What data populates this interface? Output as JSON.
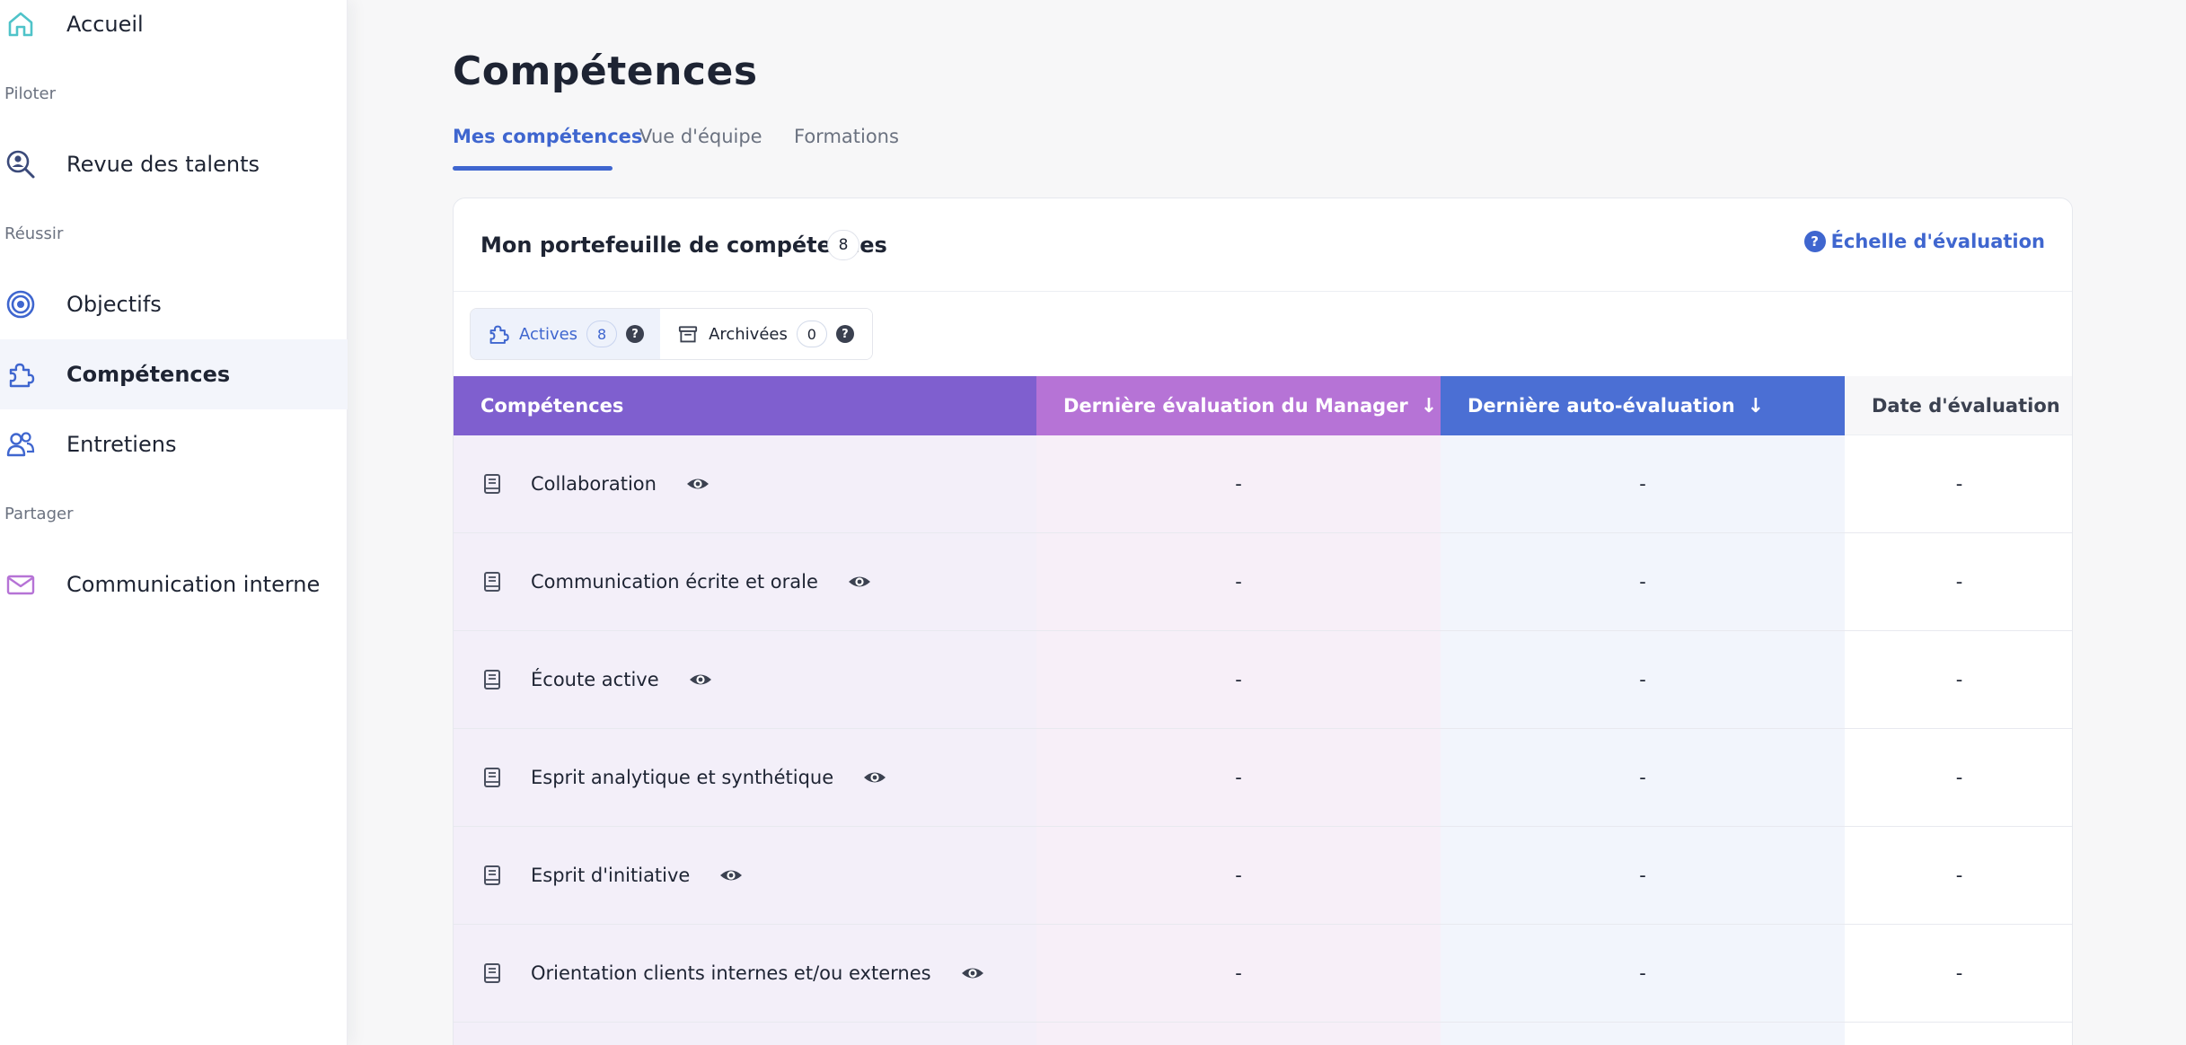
{
  "sidebar": {
    "items": [
      {
        "label": "Accueil",
        "icon": "home-icon",
        "color": "#4fc3c9"
      },
      {
        "label": "Revue des talents",
        "icon": "search-person-icon",
        "color": "#3b4a7a"
      },
      {
        "label": "Objectifs",
        "icon": "target-icon",
        "color": "#3f66cf"
      },
      {
        "label": "Compétences",
        "icon": "puzzle-icon",
        "color": "#3f66cf",
        "active": true
      },
      {
        "label": "Entretiens",
        "icon": "people-icon",
        "color": "#3f66cf"
      },
      {
        "label": "Communication interne",
        "icon": "mail-icon",
        "color": "#b673d6"
      }
    ],
    "sections": [
      "Piloter",
      "Réussir",
      "Partager"
    ]
  },
  "page": {
    "title": "Compétences",
    "tabs": [
      {
        "label": "Mes compétences",
        "active": true
      },
      {
        "label": "Vue d'équipe"
      },
      {
        "label": "Formations"
      }
    ]
  },
  "card": {
    "title": "Mon portefeuille de compétences",
    "count": "8",
    "scale_link": "Échelle d'évaluation",
    "scale_icon": "?",
    "filters": [
      {
        "label": "Actives",
        "count": "8",
        "help": "?",
        "icon": "puzzle-icon"
      },
      {
        "label": "Archivées",
        "count": "0",
        "help": "?",
        "icon": "archive-icon"
      }
    ]
  },
  "table": {
    "headers": {
      "competence": "Compétences",
      "manager": "Dernière évaluation du Manager",
      "self": "Dernière auto-évaluation",
      "date": "Date d'évaluation",
      "sort_arrow": "↓"
    },
    "rows": [
      {
        "name": "Collaboration",
        "manager": "-",
        "self": "-",
        "date": "-"
      },
      {
        "name": "Communication écrite et orale",
        "manager": "-",
        "self": "-",
        "date": "-"
      },
      {
        "name": "Écoute active",
        "manager": "-",
        "self": "-",
        "date": "-"
      },
      {
        "name": "Esprit analytique et synthétique",
        "manager": "-",
        "self": "-",
        "date": "-"
      },
      {
        "name": "Esprit d'initiative",
        "manager": "-",
        "self": "-",
        "date": "-"
      },
      {
        "name": "Orientation clients internes et/ou externes",
        "manager": "-",
        "self": "-",
        "date": "-"
      }
    ]
  },
  "colors": {
    "accent": "#3f66cf",
    "header_competence": "#7f5fcf",
    "header_manager": "#b673d6",
    "header_self": "#4b6fd4"
  }
}
